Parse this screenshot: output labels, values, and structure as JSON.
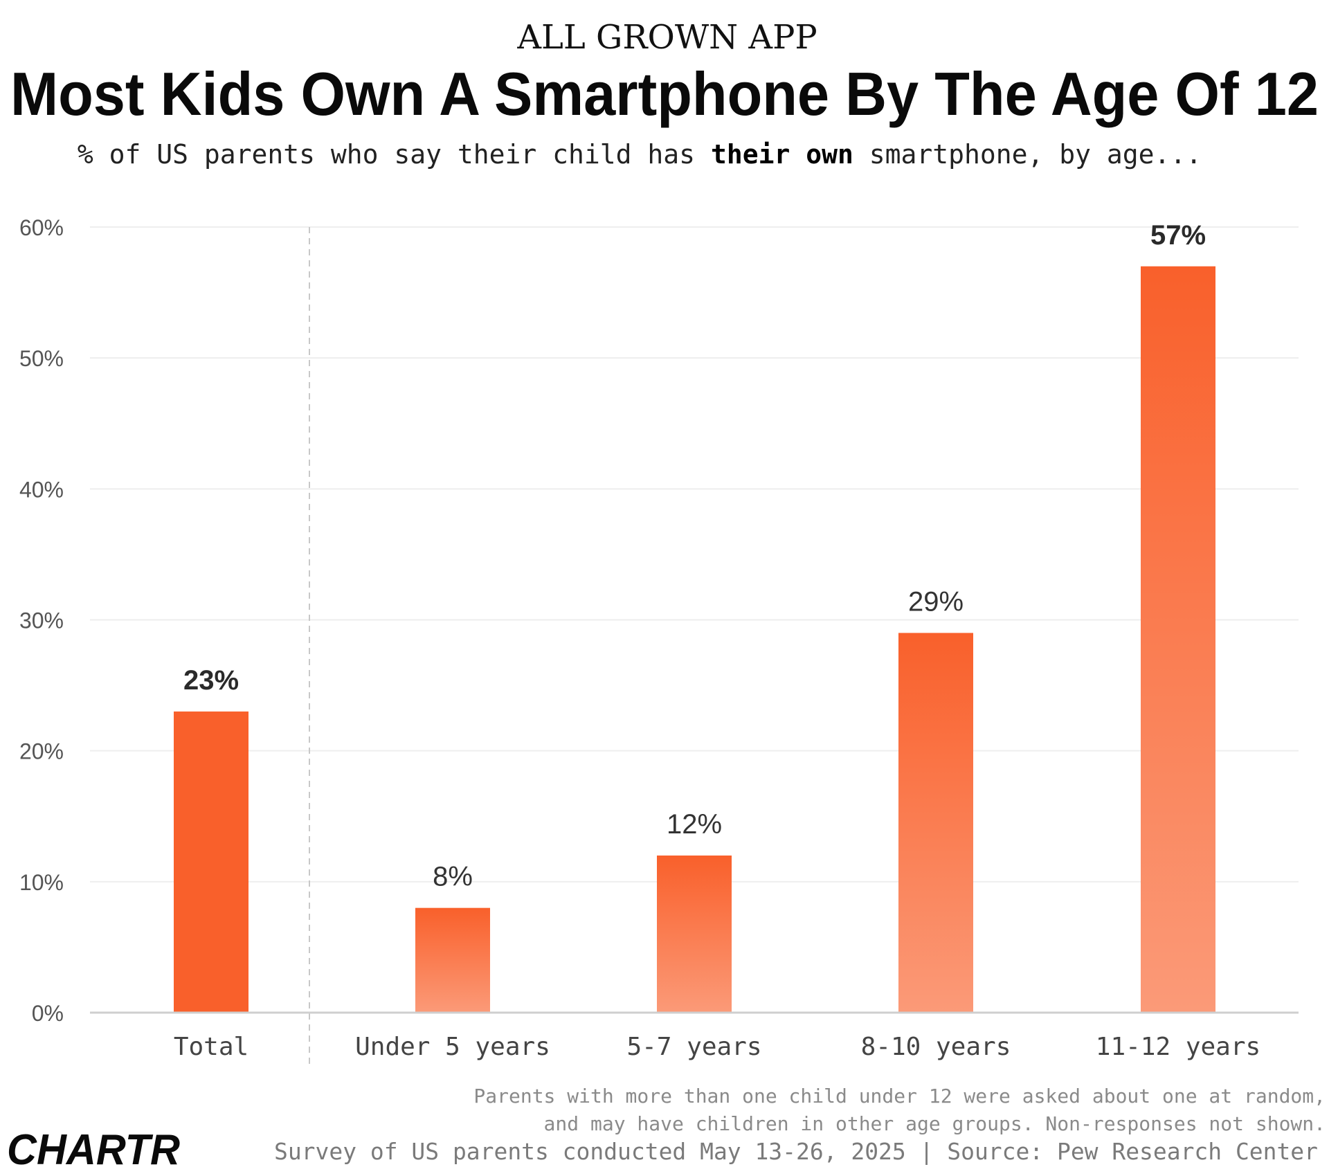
{
  "header": {
    "kicker": "ALL GROWN APP",
    "title": "Most Kids Own A Smartphone By The Age Of 12",
    "subtitle_pre": "% of US parents who say their child has ",
    "subtitle_bold": "their own",
    "subtitle_post": " smartphone, by age..."
  },
  "chart_data": {
    "type": "bar",
    "title": "Most Kids Own A Smartphone By The Age Of 12",
    "subtitle": "% of US parents who say their child has their own smartphone, by age...",
    "categories": [
      "Total",
      "Under 5 years",
      "5-7 years",
      "8-10 years",
      "11-12 years"
    ],
    "values": [
      23,
      8,
      12,
      29,
      57
    ],
    "value_labels": [
      "23%",
      "8%",
      "12%",
      "29%",
      "57%"
    ],
    "highlight": [
      true,
      false,
      false,
      false,
      true
    ],
    "yticks": [
      0,
      10,
      20,
      30,
      40,
      50,
      60
    ],
    "ytick_labels": [
      "0%",
      "10%",
      "20%",
      "30%",
      "40%",
      "50%",
      "60%"
    ],
    "ylim": [
      0,
      60
    ],
    "xlabel": "",
    "ylabel": "",
    "grid": true,
    "separator_after_category": "Total"
  },
  "footer": {
    "note_line1": "Parents with more than one child under 12 were asked about one at random,",
    "note_line2": "and may have children in other age groups. Non-responses not shown.",
    "source": "Survey of US parents conducted May 13-26, 2025 | Source: Pew Research Center",
    "logo_text": "CHARTR"
  },
  "colors": {
    "bar_top": "#f9602b",
    "bar_bottom": "#fb9a78",
    "text_dark": "#111111",
    "text_axis": "#555555",
    "text_note": "#888888",
    "grid": "#eeeeee"
  }
}
